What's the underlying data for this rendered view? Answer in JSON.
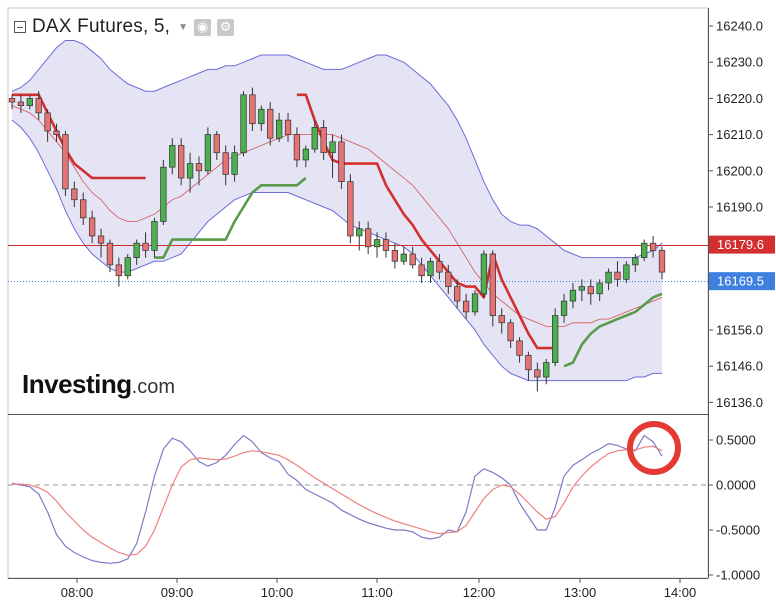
{
  "header": {
    "title": "DAX Futures, 5,",
    "eye_icon": "eye-icon",
    "gear_icon": "gear-icon"
  },
  "brand": {
    "name": "Investing",
    "suffix": ".com"
  },
  "colors": {
    "candle_up": "#4caf50",
    "candle_down": "#e57373",
    "bollinger_fill": "#e4e4f4",
    "bollinger_line": "#6c6cd8",
    "red_stop": "#d32f2f",
    "green_stop": "#5a9a4a",
    "macd": "#7b7bc8",
    "signal": "#f08080",
    "marker": "#e53935",
    "price_line": "#d32f2f",
    "last_price_bg": "#3f7fe0"
  },
  "chart_data": [
    {
      "type": "candlestick",
      "y_tick_labels": [
        "16240.0",
        "16230.0",
        "16220.0",
        "16210.0",
        "16200.0",
        "16190.0",
        "16156.0",
        "16146.0",
        "16136.0"
      ],
      "x_tick_labels": [
        "08:00",
        "09:00",
        "10:00",
        "11:00",
        "12:00",
        "13:00",
        "14:00"
      ],
      "price_lines": [
        {
          "label": "16179.6",
          "value": 16179.6,
          "style": "solid"
        },
        {
          "label": "16169.5",
          "value": 16169.5,
          "style": "dotted"
        }
      ],
      "candles": [
        [
          16220,
          16221,
          16217,
          16219
        ],
        [
          16219,
          16221,
          16216,
          16218
        ],
        [
          16218,
          16221,
          16217,
          16220
        ],
        [
          16220,
          16222,
          16214,
          16216
        ],
        [
          16216,
          16217,
          16208,
          16211
        ],
        [
          16211,
          16213,
          16208,
          16210
        ],
        [
          16210,
          16211,
          16193,
          16195
        ],
        [
          16195,
          16197,
          16190,
          16192
        ],
        [
          16192,
          16194,
          16185,
          16187
        ],
        [
          16187,
          16189,
          16180,
          16182
        ],
        [
          16182,
          16184,
          16176,
          16180
        ],
        [
          16180,
          16181,
          16172,
          16174
        ],
        [
          16174,
          16176,
          16168,
          16171
        ],
        [
          16171,
          16177,
          16170,
          16176
        ],
        [
          16176,
          16181,
          16174,
          16180
        ],
        [
          16180,
          16183,
          16176,
          16178
        ],
        [
          16178,
          16187,
          16176,
          16186
        ],
        [
          16186,
          16203,
          16185,
          16201
        ],
        [
          16201,
          16209,
          16199,
          16207
        ],
        [
          16207,
          16209,
          16196,
          16198
        ],
        [
          16198,
          16205,
          16194,
          16202
        ],
        [
          16202,
          16204,
          16196,
          16200
        ],
        [
          16200,
          16212,
          16199,
          16210
        ],
        [
          16210,
          16211,
          16203,
          16205
        ],
        [
          16205,
          16207,
          16196,
          16199
        ],
        [
          16199,
          16207,
          16197,
          16205
        ],
        [
          16205,
          16222,
          16204,
          16221
        ],
        [
          16221,
          16223,
          16211,
          16213
        ],
        [
          16213,
          16218,
          16211,
          16217
        ],
        [
          16217,
          16219,
          16207,
          16209
        ],
        [
          16209,
          16216,
          16208,
          16214
        ],
        [
          16214,
          16216,
          16208,
          16210
        ],
        [
          16210,
          16212,
          16201,
          16203
        ],
        [
          16203,
          16207,
          16201,
          16206
        ],
        [
          16206,
          16214,
          16205,
          16212
        ],
        [
          16212,
          16214,
          16203,
          16205
        ],
        [
          16205,
          16210,
          16198,
          16208
        ],
        [
          16208,
          16210,
          16195,
          16197
        ],
        [
          16197,
          16199,
          16180,
          16182
        ],
        [
          16182,
          16186,
          16178,
          16184
        ],
        [
          16184,
          16186,
          16177,
          16179
        ],
        [
          16179,
          16183,
          16176,
          16181
        ],
        [
          16181,
          16183,
          16176,
          16178
        ],
        [
          16178,
          16180,
          16173,
          16175
        ],
        [
          16175,
          16179,
          16174,
          16177
        ],
        [
          16177,
          16179,
          16173,
          16174
        ],
        [
          16174,
          16176,
          16169,
          16171
        ],
        [
          16171,
          16176,
          16169,
          16175
        ],
        [
          16175,
          16177,
          16170,
          16172
        ],
        [
          16172,
          16174,
          16166,
          16168
        ],
        [
          16168,
          16170,
          16162,
          16164
        ],
        [
          16164,
          16166,
          16159,
          16161
        ],
        [
          16161,
          16167,
          16160,
          16166
        ],
        [
          16166,
          16178,
          16165,
          16177
        ],
        [
          16177,
          16178,
          16157,
          16160
        ],
        [
          16160,
          16162,
          16155,
          16158
        ],
        [
          16158,
          16159,
          16151,
          16153
        ],
        [
          16153,
          16154,
          16147,
          16149
        ],
        [
          16149,
          16150,
          16142,
          16145
        ],
        [
          16145,
          16147,
          16139,
          16143
        ],
        [
          16143,
          16148,
          16141,
          16147
        ],
        [
          16147,
          16162,
          16146,
          16160
        ],
        [
          16160,
          16166,
          16158,
          16164
        ],
        [
          16164,
          16169,
          16162,
          16167
        ],
        [
          16167,
          16170,
          16164,
          16168
        ],
        [
          16168,
          16170,
          16163,
          16166
        ],
        [
          16166,
          16170,
          16164,
          16169
        ],
        [
          16169,
          16173,
          16167,
          16172
        ],
        [
          16172,
          16175,
          16168,
          16170
        ],
        [
          16170,
          16175,
          16169,
          16174
        ],
        [
          16174,
          16177,
          16172,
          16176
        ],
        [
          16176,
          16181,
          16175,
          16180
        ],
        [
          16180,
          16182,
          16176,
          16178
        ],
        [
          16178,
          16179,
          16170,
          16172
        ]
      ],
      "bollinger_upper": [
        16222,
        16223,
        16225,
        16228,
        16231,
        16234,
        16236,
        16236,
        16235,
        16233,
        16231,
        16228,
        16226,
        16224,
        16223,
        16222,
        16222,
        16223,
        16224,
        16225,
        16226,
        16227,
        16228,
        16228,
        16229,
        16229,
        16230,
        16231,
        16232,
        16232,
        16232,
        16232,
        16231,
        16230,
        16229,
        16228,
        16228,
        16228,
        16229,
        16230,
        16231,
        16232,
        16232,
        16231,
        16230,
        16228,
        16226,
        16224,
        16221,
        16218,
        16214,
        16209,
        16203,
        16197,
        16192,
        16188,
        16186,
        16185,
        16185,
        16184,
        16182,
        16180,
        16178,
        16177,
        16176,
        16176,
        16176,
        16176,
        16176,
        16176,
        16176,
        16177,
        16178,
        16180
      ],
      "bollinger_lower": [
        16214,
        16212,
        16209,
        16205,
        16200,
        16195,
        16189,
        16184,
        16180,
        16177,
        16175,
        16173,
        16172,
        16172,
        16173,
        16174,
        16175,
        16175,
        16176,
        16177,
        16180,
        16183,
        16186,
        16188,
        16190,
        16192,
        16193,
        16194,
        16194,
        16194,
        16194,
        16194,
        16193,
        16192,
        16191,
        16190,
        16189,
        16187,
        16185,
        16184,
        16183,
        16182,
        16181,
        16180,
        16179,
        16177,
        16174,
        16171,
        16168,
        16165,
        16162,
        16159,
        16156,
        16152,
        16149,
        16146,
        16144,
        16143,
        16142,
        16142,
        16142,
        16142,
        16142,
        16142,
        16142,
        16142,
        16142,
        16142,
        16142,
        16142,
        16143,
        16143,
        16144,
        16144
      ],
      "red_trailing_stop": [
        16221,
        16221,
        16221,
        16221,
        16216,
        16211,
        16206,
        16202,
        16200,
        16198,
        16198,
        16198,
        16198,
        16198,
        16198,
        16198,
        null,
        null,
        null,
        null,
        null,
        null,
        null,
        null,
        null,
        null,
        null,
        null,
        null,
        null,
        null,
        null,
        16221,
        16221,
        16214,
        16208,
        16203,
        16202,
        16202,
        16202,
        16202,
        16202,
        16196,
        16192,
        16188,
        16185,
        16181,
        16178,
        16175,
        16172,
        16169,
        16168,
        16168,
        16165,
        16177,
        16170,
        16165,
        16160,
        16155,
        16151,
        16151,
        16151,
        null,
        null,
        null,
        null,
        null,
        null,
        null,
        null,
        null,
        null,
        null,
        null
      ],
      "green_trailing_stop": [
        null,
        null,
        null,
        null,
        null,
        null,
        null,
        null,
        null,
        null,
        null,
        null,
        null,
        null,
        null,
        null,
        16176,
        16176,
        16181,
        16181,
        16181,
        16181,
        16181,
        16181,
        16181,
        16186,
        16190,
        16194,
        16196,
        16196,
        16196,
        16196,
        16196,
        16198,
        null,
        null,
        null,
        null,
        null,
        null,
        null,
        null,
        null,
        null,
        null,
        null,
        null,
        null,
        null,
        null,
        null,
        null,
        null,
        null,
        null,
        null,
        null,
        null,
        null,
        null,
        null,
        null,
        16146,
        16147,
        16152,
        16155,
        16157,
        16158,
        16159,
        16160,
        16161,
        16163,
        16165,
        16166
      ],
      "middle_band": [
        16218,
        16217,
        16216,
        16214,
        16211,
        16208,
        16205,
        16201,
        16197,
        16194,
        16192,
        16189,
        16187,
        16186,
        16186,
        16187,
        16188,
        16190,
        16192,
        16193,
        16195,
        16197,
        16199,
        16201,
        16203,
        16204,
        16205,
        16206,
        16207,
        16208,
        16209,
        16210,
        16210,
        16210,
        16210,
        16210,
        16210,
        16209,
        16208,
        16207,
        16206,
        16204,
        16202,
        16200,
        16198,
        16196,
        16193,
        16190,
        16187,
        16184,
        16180,
        16176,
        16172,
        16169,
        16166,
        16164,
        16162,
        16160,
        16159,
        16158,
        16157,
        16157,
        16157,
        16158,
        16158,
        16158,
        16159,
        16159,
        16160,
        16161,
        16162,
        16163,
        16164,
        16165
      ]
    },
    {
      "type": "line",
      "y_tick_labels": [
        "0.5000",
        "0.0000",
        "-0.5000",
        "-1.0000"
      ],
      "series": [
        {
          "values": [
            0.02,
            0.0,
            -0.02,
            -0.1,
            -0.3,
            -0.55,
            -0.68,
            -0.75,
            -0.8,
            -0.84,
            -0.86,
            -0.87,
            -0.86,
            -0.82,
            -0.65,
            -0.3,
            0.1,
            0.4,
            0.52,
            0.48,
            0.38,
            0.26,
            0.21,
            0.25,
            0.33,
            0.45,
            0.55,
            0.48,
            0.36,
            0.3,
            0.26,
            0.12,
            0.05,
            -0.05,
            -0.1,
            -0.15,
            -0.2,
            -0.28,
            -0.33,
            -0.38,
            -0.42,
            -0.45,
            -0.48,
            -0.5,
            -0.5,
            -0.52,
            -0.58,
            -0.6,
            -0.58,
            -0.5,
            -0.52,
            -0.3,
            0.1,
            0.18,
            0.14,
            0.08,
            0.0,
            -0.2,
            -0.35,
            -0.5,
            -0.5,
            -0.25,
            0.1,
            0.22,
            0.28,
            0.35,
            0.4,
            0.46,
            0.44,
            0.4,
            0.38,
            0.55,
            0.48,
            0.32
          ]
        },
        {
          "values": [
            0.01,
            0.01,
            0.0,
            -0.03,
            -0.08,
            -0.18,
            -0.3,
            -0.4,
            -0.5,
            -0.58,
            -0.64,
            -0.7,
            -0.75,
            -0.78,
            -0.77,
            -0.68,
            -0.5,
            -0.25,
            0.0,
            0.2,
            0.28,
            0.3,
            0.29,
            0.28,
            0.29,
            0.32,
            0.36,
            0.38,
            0.37,
            0.35,
            0.33,
            0.28,
            0.22,
            0.15,
            0.08,
            0.02,
            -0.04,
            -0.1,
            -0.16,
            -0.22,
            -0.27,
            -0.32,
            -0.36,
            -0.4,
            -0.43,
            -0.46,
            -0.49,
            -0.52,
            -0.54,
            -0.53,
            -0.52,
            -0.45,
            -0.3,
            -0.15,
            -0.05,
            0.0,
            -0.02,
            -0.1,
            -0.2,
            -0.3,
            -0.38,
            -0.35,
            -0.2,
            -0.02,
            0.1,
            0.2,
            0.28,
            0.35,
            0.38,
            0.39,
            0.39,
            0.42,
            0.43,
            0.38
          ]
        }
      ],
      "zero_line": 0.0,
      "ylim": [
        -1.0,
        0.7
      ]
    }
  ]
}
